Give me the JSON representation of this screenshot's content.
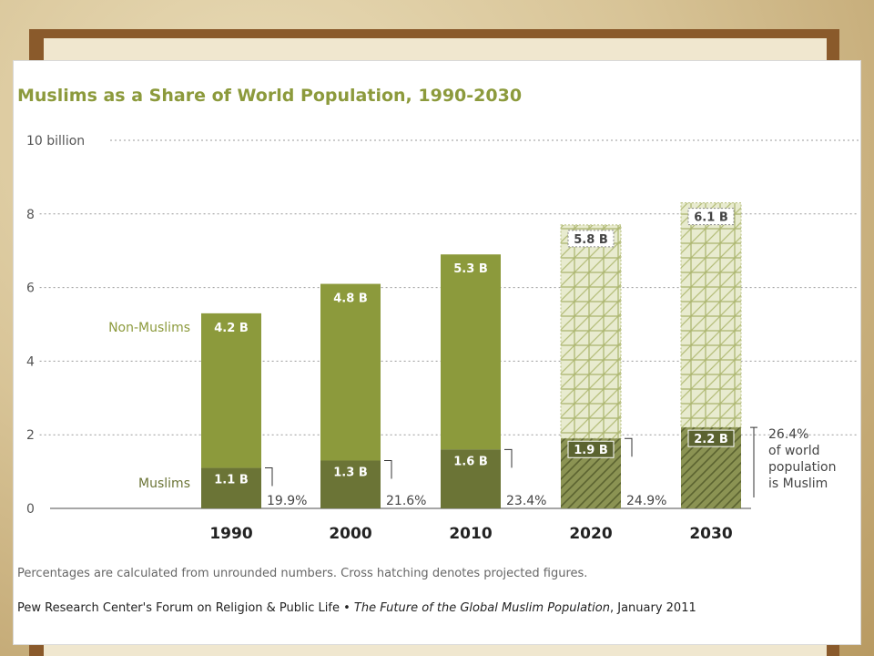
{
  "chart_data": {
    "type": "bar",
    "title": "Muslims as a Share of World Population, 1990-2030",
    "categories": [
      "1990",
      "2000",
      "2010",
      "2020",
      "2030"
    ],
    "projected": [
      false,
      false,
      false,
      true,
      true
    ],
    "series": [
      {
        "name": "Muslims",
        "values": [
          1.1,
          1.3,
          1.6,
          1.9,
          2.2
        ],
        "labels": [
          "1.1 B",
          "1.3 B",
          "1.6 B",
          "1.9 B",
          "2.2 B"
        ],
        "color": "#6b7436"
      },
      {
        "name": "Non-Muslims",
        "values": [
          4.2,
          4.8,
          5.3,
          5.8,
          6.1
        ],
        "labels": [
          "4.2 B",
          "4.8 B",
          "5.3 B",
          "5.8 B",
          "6.1 B"
        ],
        "color": "#8c9a3c"
      }
    ],
    "percentages": [
      "19.9%",
      "21.6%",
      "23.4%",
      "24.9%",
      "26.4%"
    ],
    "last_annotation": [
      "of world",
      "population",
      "is Muslim"
    ],
    "ylim": [
      0,
      10
    ],
    "yticks": [
      0,
      2,
      4,
      6,
      8,
      10
    ],
    "ytick_labels": [
      "0",
      "2",
      "4",
      "6",
      "8",
      "10 billion"
    ],
    "grid": true,
    "footnote": "Percentages are calculated from unrounded numbers. Cross hatching denotes projected figures.",
    "source_prefix": "Pew Research Center's Forum on Religion & Public Life • ",
    "source_title": "The Future of the Global Muslim Population",
    "source_suffix": ", January 2011"
  }
}
